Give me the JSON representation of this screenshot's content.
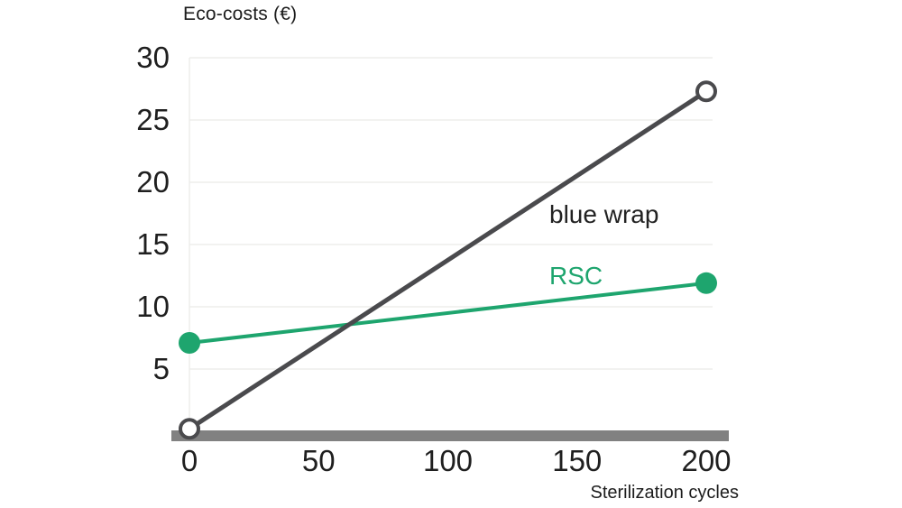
{
  "chart_data": {
    "type": "line",
    "title": "Eco-costs (€)",
    "xlabel": "Sterilization cycles",
    "ylabel": "Eco-costs (€)",
    "xlim": [
      0,
      200
    ],
    "ylim": [
      0,
      30
    ],
    "x_ticks": [
      0,
      50,
      100,
      150,
      200
    ],
    "y_ticks": [
      5,
      10,
      15,
      20,
      25,
      30
    ],
    "grid": "horizontal-light",
    "legend_position": "inline-labels",
    "gridline_color": "#ededec",
    "axis_bar_color": "#818181",
    "tick_label_color": "#1f1f1f",
    "series": [
      {
        "name": "blue wrap",
        "color": "#4a4a4d",
        "label_color": "#222222",
        "marker": "open-circle",
        "line_width": 5,
        "x": [
          0,
          200
        ],
        "y": [
          0.2,
          27.3
        ]
      },
      {
        "name": "RSC",
        "color": "#1ea56e",
        "label_color": "#1ea56e",
        "marker": "filled-circle",
        "line_width": 4,
        "x": [
          0,
          200
        ],
        "y": [
          7.1,
          11.9
        ]
      }
    ]
  }
}
